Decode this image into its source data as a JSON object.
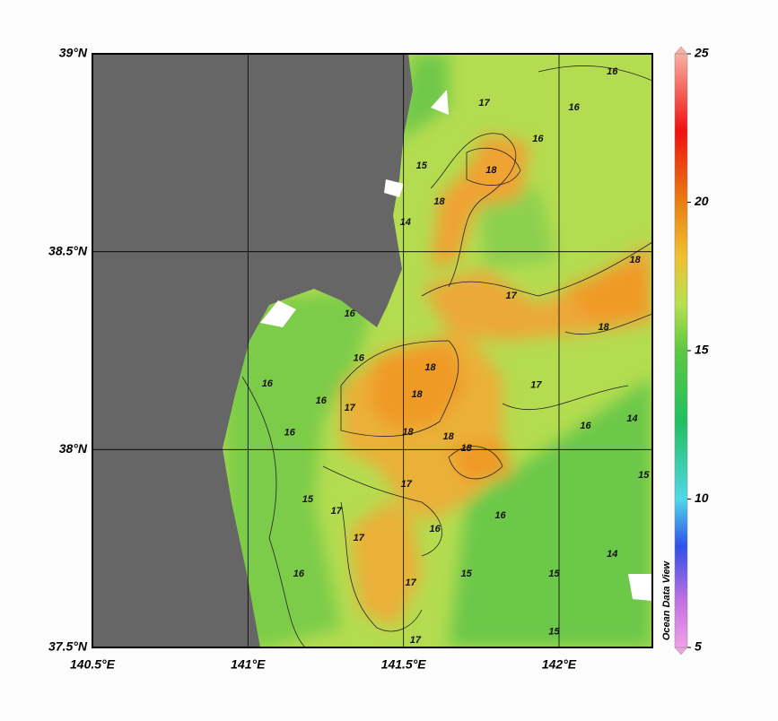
{
  "map": {
    "xlim": [
      140.5,
      142.3
    ],
    "ylim": [
      37.5,
      39
    ],
    "lon_ticks": [
      {
        "value": 140.5,
        "label": "140.5°E"
      },
      {
        "value": 141,
        "label": "141°E"
      },
      {
        "value": 141.5,
        "label": "141.5°E"
      },
      {
        "value": 142,
        "label": "142°E"
      }
    ],
    "lat_ticks": [
      {
        "value": 37.5,
        "label": "37.5°N"
      },
      {
        "value": 38,
        "label": "38°N"
      },
      {
        "value": 38.5,
        "label": "38.5°N"
      },
      {
        "value": 39,
        "label": "39°N"
      }
    ],
    "contour_labels": [
      {
        "value": 16,
        "lon": 142.171,
        "lat": 38.955
      },
      {
        "value": 17,
        "lon": 141.759,
        "lat": 38.875
      },
      {
        "value": 18,
        "lon": 141.782,
        "lat": 38.705
      },
      {
        "value": 18,
        "lon": 141.615,
        "lat": 38.626
      },
      {
        "value": 15,
        "lon": 141.558,
        "lat": 38.717
      },
      {
        "value": 14,
        "lon": 141.506,
        "lat": 38.574
      },
      {
        "value": 16,
        "lon": 142.048,
        "lat": 38.864
      },
      {
        "value": 16,
        "lon": 141.932,
        "lat": 38.785
      },
      {
        "value": 17,
        "lon": 141.846,
        "lat": 38.388
      },
      {
        "value": 18,
        "lon": 142.244,
        "lat": 38.479
      },
      {
        "value": 18,
        "lon": 142.143,
        "lat": 38.309
      },
      {
        "value": 16,
        "lon": 141.327,
        "lat": 38.343
      },
      {
        "value": 16,
        "lon": 141.356,
        "lat": 38.23
      },
      {
        "value": 18,
        "lon": 141.586,
        "lat": 38.207
      },
      {
        "value": 18,
        "lon": 141.543,
        "lat": 38.139
      },
      {
        "value": 17,
        "lon": 141.327,
        "lat": 38.105
      },
      {
        "value": 16,
        "lon": 141.235,
        "lat": 38.123
      },
      {
        "value": 16,
        "lon": 141.134,
        "lat": 38.042
      },
      {
        "value": 18,
        "lon": 141.514,
        "lat": 38.044
      },
      {
        "value": 18,
        "lon": 141.644,
        "lat": 38.032
      },
      {
        "value": 18,
        "lon": 141.702,
        "lat": 38.003
      },
      {
        "value": 17,
        "lon": 141.926,
        "lat": 38.162
      },
      {
        "value": 16,
        "lon": 142.085,
        "lat": 38.06
      },
      {
        "value": 14,
        "lon": 142.235,
        "lat": 38.078
      },
      {
        "value": 15,
        "lon": 142.272,
        "lat": 37.935
      },
      {
        "value": 17,
        "lon": 141.509,
        "lat": 37.912
      },
      {
        "value": 15,
        "lon": 141.192,
        "lat": 37.874
      },
      {
        "value": 17,
        "lon": 141.284,
        "lat": 37.844
      },
      {
        "value": 17,
        "lon": 141.356,
        "lat": 37.776
      },
      {
        "value": 16,
        "lon": 141.163,
        "lat": 37.686
      },
      {
        "value": 16,
        "lon": 141.601,
        "lat": 37.799
      },
      {
        "value": 16,
        "lon": 141.811,
        "lat": 37.833
      },
      {
        "value": 17,
        "lon": 141.523,
        "lat": 37.663
      },
      {
        "value": 15,
        "lon": 141.702,
        "lat": 37.686
      },
      {
        "value": 15,
        "lon": 141.984,
        "lat": 37.686
      },
      {
        "value": 14,
        "lon": 142.171,
        "lat": 37.736
      },
      {
        "value": 15,
        "lon": 141.984,
        "lat": 37.539
      },
      {
        "value": 17,
        "lon": 141.538,
        "lat": 37.518
      },
      {
        "value": 16,
        "lon": 141.062,
        "lat": 38.166
      }
    ]
  },
  "colorbar": {
    "lim": [
      5,
      25
    ],
    "ticks": [
      5,
      10,
      15,
      20,
      25
    ],
    "label": "Ocean Data View"
  }
}
